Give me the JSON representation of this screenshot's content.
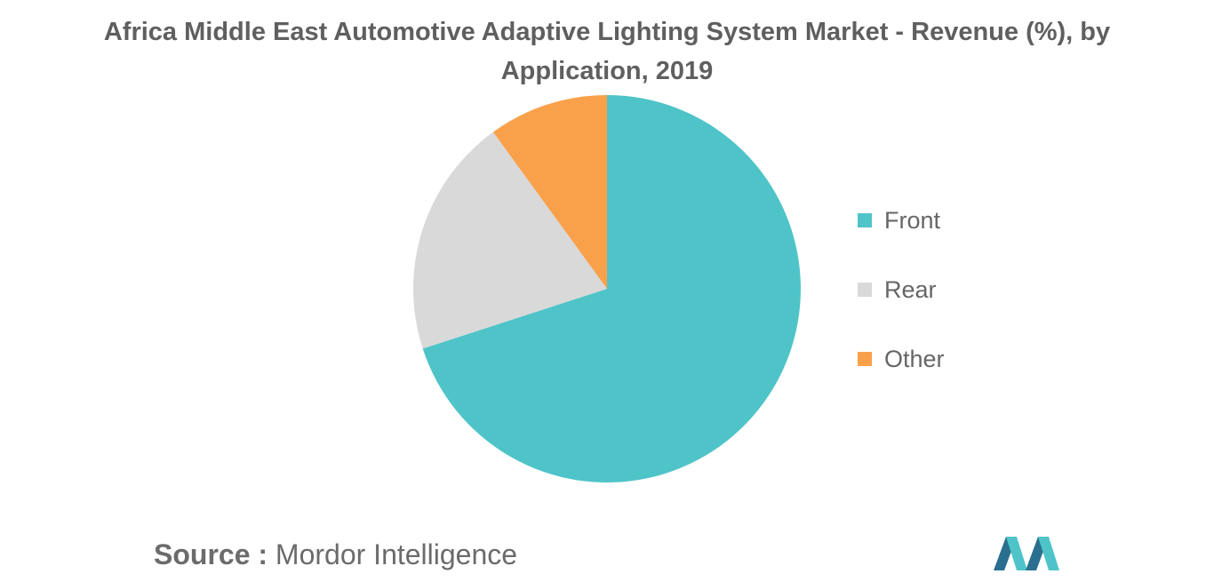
{
  "title": "Africa Middle East Automotive Adaptive Lighting System Market - Revenue (%), by Application, 2019",
  "chart_data": {
    "type": "pie",
    "title": "Africa Middle East Automotive Adaptive Lighting System Market - Revenue (%), by Application, 2019",
    "categories": [
      "Front",
      "Rear",
      "Other"
    ],
    "values": [
      70,
      20,
      10
    ],
    "colors": [
      "#4fc4c8",
      "#d9d9d9",
      "#f8a14a"
    ],
    "start_angle_deg": 0,
    "direction": "clockwise",
    "legend_position": "right"
  },
  "legend": {
    "items": [
      {
        "label": "Front",
        "color": "#4fc4c8"
      },
      {
        "label": "Rear",
        "color": "#d9d9d9"
      },
      {
        "label": "Other",
        "color": "#f8a14a"
      }
    ]
  },
  "source": {
    "label": "Source :",
    "value": "Mordor Intelligence"
  },
  "logo": {
    "icon": "mordor-intelligence-logo-icon",
    "colors": [
      "#2a6f8f",
      "#4fc4c8"
    ]
  }
}
